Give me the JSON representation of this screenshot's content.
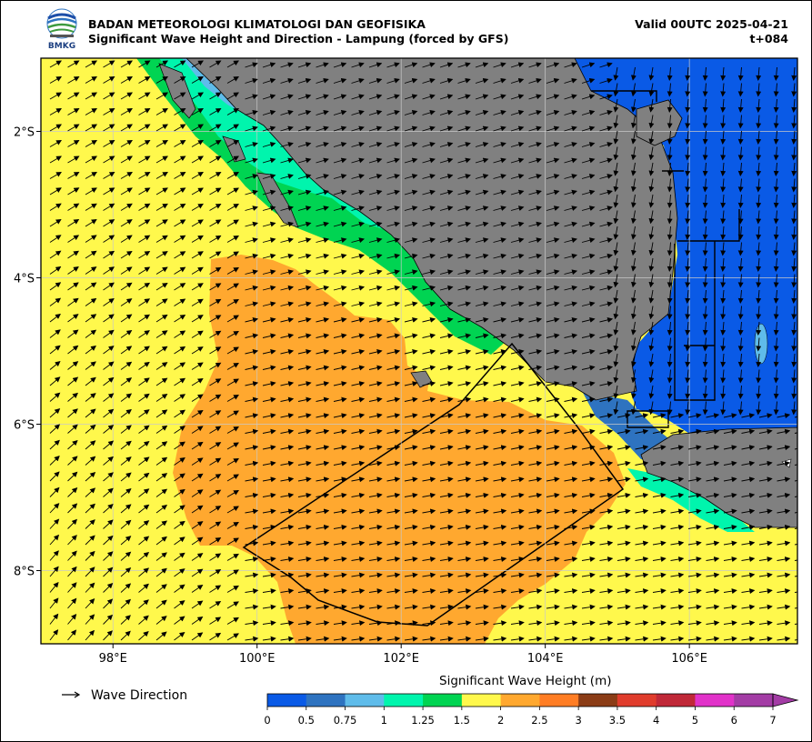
{
  "header": {
    "org_logo_text": "BMKG",
    "title_line1": "BADAN METEOROLOGI KLIMATOLOGI DAN GEOFISIKA",
    "title_line2": "Significant Wave Height and Direction - Lampung (forced by GFS)",
    "valid_time": "Valid 00UTC 2025-04-21",
    "forecast_step": "t+084"
  },
  "map": {
    "lon_range": [
      97.0,
      107.5
    ],
    "lat_range": [
      -9.0,
      -1.0
    ],
    "x_ticks": [
      {
        "lon": 98,
        "label": "98°E"
      },
      {
        "lon": 100,
        "label": "100°E"
      },
      {
        "lon": 102,
        "label": "102°E"
      },
      {
        "lon": 104,
        "label": "104°E"
      },
      {
        "lon": 106,
        "label": "106°E"
      }
    ],
    "y_ticks": [
      {
        "lat": -2,
        "label": "2°S"
      },
      {
        "lat": -4,
        "label": "4°S"
      },
      {
        "lat": -6,
        "label": "6°S"
      },
      {
        "lat": -8,
        "label": "8°S"
      }
    ],
    "grid": true,
    "land_color": "#808080",
    "lampung_marine_zone_outline": [
      [
        103.3,
        -4.9
      ],
      [
        105.1,
        -6.9
      ],
      [
        102.4,
        -8.8
      ],
      [
        101.2,
        -8.5
      ],
      [
        99.8,
        -7.75
      ]
    ],
    "dominant_wave_direction": "west to east-northeast in open ocean, northward in southwest corner"
  },
  "legend": {
    "arrow_label": "Wave Direction"
  },
  "colorbar": {
    "title": "Significant Wave Height (m)",
    "unit": "m",
    "extend": "max",
    "levels": [
      "0",
      "0.5",
      "0.75",
      "1",
      "1.25",
      "1.5",
      "2",
      "2.5",
      "3",
      "3.5",
      "4",
      "5",
      "6",
      "7"
    ],
    "colors": [
      "#0a5ae6",
      "#2e73c0",
      "#5fbcea",
      "#00f5ad",
      "#00d452",
      "#fff84c",
      "#ffa82f",
      "#ff7d24",
      "#8b3c16",
      "#e03c2c",
      "#c02838",
      "#e132c9",
      "#a33ca5",
      "#a33ca5"
    ]
  }
}
